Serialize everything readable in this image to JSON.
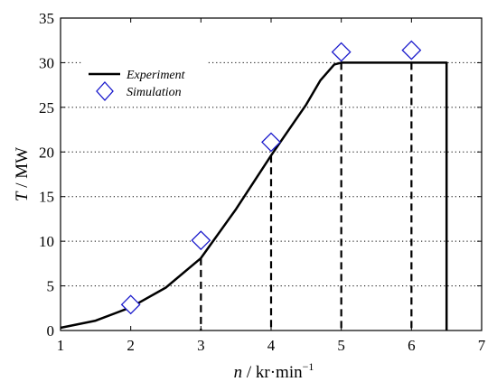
{
  "chart_data": {
    "type": "line",
    "xlabel": {
      "var": "n",
      "rest": " / kr·min",
      "sup": "−1"
    },
    "ylabel": {
      "var": "T",
      "rest": " / MW"
    },
    "xlim": [
      1,
      7
    ],
    "ylim": [
      0,
      35
    ],
    "xticks": [
      "1",
      "2",
      "3",
      "4",
      "5",
      "6",
      "7"
    ],
    "yticks": [
      "0",
      "5",
      "10",
      "15",
      "20",
      "25",
      "30",
      "35"
    ],
    "grid": "horizontal dotted",
    "legend_position": "top-left",
    "series": [
      {
        "name": "Experiment",
        "style": "solid line",
        "color": "#000000",
        "x": [
          1.0,
          1.5,
          2.0,
          2.5,
          3.0,
          3.5,
          4.0,
          4.5,
          4.7,
          4.9,
          5.0,
          6.5,
          6.5
        ],
        "y": [
          0.3,
          1.1,
          2.6,
          4.8,
          8.1,
          13.6,
          19.6,
          25.3,
          28.0,
          29.8,
          30.0,
          30.0,
          0.0
        ]
      },
      {
        "name": "Simulation",
        "style": "diamond markers",
        "color": "#1a1acc",
        "x": [
          2,
          3,
          4,
          5,
          6
        ],
        "y": [
          2.9,
          10.1,
          21.1,
          31.2,
          31.4
        ]
      }
    ],
    "dashed_verticals": [
      {
        "x": 3,
        "y": 8.1
      },
      {
        "x": 4,
        "y": 19.6
      },
      {
        "x": 5,
        "y": 30.0
      },
      {
        "x": 6,
        "y": 30.0
      }
    ]
  }
}
